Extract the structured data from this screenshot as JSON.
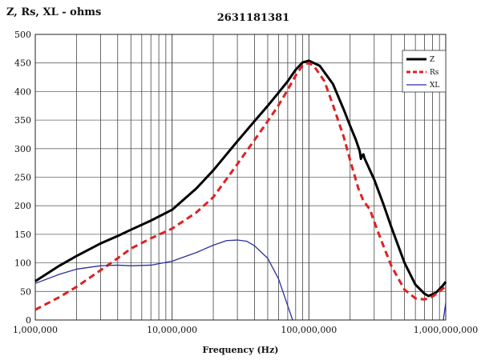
{
  "chart_data": {
    "type": "line",
    "title": "2631181381",
    "ylabel": "Z, Rs, XL - ohms",
    "xlabel": "Frequency (Hz)",
    "xscale": "log",
    "xlim": [
      1000000,
      1000000000
    ],
    "ylim": [
      0,
      500
    ],
    "yticks": [
      0,
      50,
      100,
      150,
      200,
      250,
      300,
      350,
      400,
      450,
      500
    ],
    "xticks": [
      {
        "value": 1000000,
        "label": "1,000,000"
      },
      {
        "value": 10000000,
        "label": "10,000,000"
      },
      {
        "value": 100000000,
        "label": "100,000,000"
      },
      {
        "value": 1000000000,
        "label": "1,000,000,000"
      }
    ],
    "grid": true,
    "legend_position": "top-right",
    "series": [
      {
        "name": "Z",
        "color": "#000000",
        "style": "solid-thick",
        "points": [
          [
            1000000,
            68
          ],
          [
            1500000,
            95
          ],
          [
            2000000,
            112
          ],
          [
            3000000,
            134
          ],
          [
            4000000,
            147
          ],
          [
            5000000,
            158
          ],
          [
            7000000,
            174
          ],
          [
            10000000,
            193
          ],
          [
            15000000,
            230
          ],
          [
            20000000,
            262
          ],
          [
            30000000,
            313
          ],
          [
            40000000,
            348
          ],
          [
            50000000,
            375
          ],
          [
            60000000,
            398
          ],
          [
            70000000,
            418
          ],
          [
            80000000,
            438
          ],
          [
            90000000,
            451
          ],
          [
            100000000,
            454
          ],
          [
            120000000,
            445
          ],
          [
            150000000,
            413
          ],
          [
            180000000,
            368
          ],
          [
            200000000,
            340
          ],
          [
            220000000,
            316
          ],
          [
            235000000,
            296
          ],
          [
            240000000,
            282
          ],
          [
            245000000,
            288
          ],
          [
            250000000,
            290
          ],
          [
            255000000,
            283
          ],
          [
            300000000,
            246
          ],
          [
            350000000,
            203
          ],
          [
            400000000,
            163
          ],
          [
            500000000,
            100
          ],
          [
            600000000,
            62
          ],
          [
            700000000,
            46
          ],
          [
            750000000,
            42
          ],
          [
            850000000,
            48
          ],
          [
            950000000,
            60
          ],
          [
            1000000000,
            67
          ]
        ]
      },
      {
        "name": "Rs",
        "color": "#dd2222",
        "style": "dashed-thick",
        "points": [
          [
            1000000,
            18
          ],
          [
            1500000,
            40
          ],
          [
            2000000,
            58
          ],
          [
            3000000,
            87
          ],
          [
            4000000,
            108
          ],
          [
            5000000,
            125
          ],
          [
            7000000,
            143
          ],
          [
            10000000,
            160
          ],
          [
            15000000,
            188
          ],
          [
            20000000,
            215
          ],
          [
            30000000,
            273
          ],
          [
            40000000,
            315
          ],
          [
            50000000,
            348
          ],
          [
            60000000,
            376
          ],
          [
            70000000,
            403
          ],
          [
            80000000,
            428
          ],
          [
            90000000,
            446
          ],
          [
            100000000,
            450
          ],
          [
            110000000,
            443
          ],
          [
            130000000,
            418
          ],
          [
            150000000,
            376
          ],
          [
            180000000,
            320
          ],
          [
            200000000,
            280
          ],
          [
            230000000,
            230
          ],
          [
            250000000,
            209
          ],
          [
            280000000,
            193
          ],
          [
            300000000,
            172
          ],
          [
            350000000,
            130
          ],
          [
            400000000,
            95
          ],
          [
            500000000,
            53
          ],
          [
            600000000,
            38
          ],
          [
            700000000,
            36
          ],
          [
            800000000,
            41
          ],
          [
            900000000,
            50
          ],
          [
            1000000000,
            59
          ]
        ]
      },
      {
        "name": "XL",
        "color": "#2a2fa0",
        "style": "solid-thin",
        "points": [
          [
            1000000,
            64
          ],
          [
            1500000,
            80
          ],
          [
            2000000,
            89
          ],
          [
            3000000,
            95
          ],
          [
            4000000,
            96
          ],
          [
            5000000,
            95
          ],
          [
            7000000,
            96
          ],
          [
            10000000,
            103
          ],
          [
            15000000,
            118
          ],
          [
            20000000,
            131
          ],
          [
            25000000,
            139
          ],
          [
            30000000,
            140
          ],
          [
            35000000,
            138
          ],
          [
            40000000,
            130
          ],
          [
            50000000,
            108
          ],
          [
            60000000,
            72
          ],
          [
            70000000,
            25
          ],
          [
            76000000,
            0
          ]
        ],
        "extra_segments": [
          [
            [
              960000000,
              0
            ],
            [
              1000000000,
              30
            ]
          ]
        ]
      }
    ]
  }
}
